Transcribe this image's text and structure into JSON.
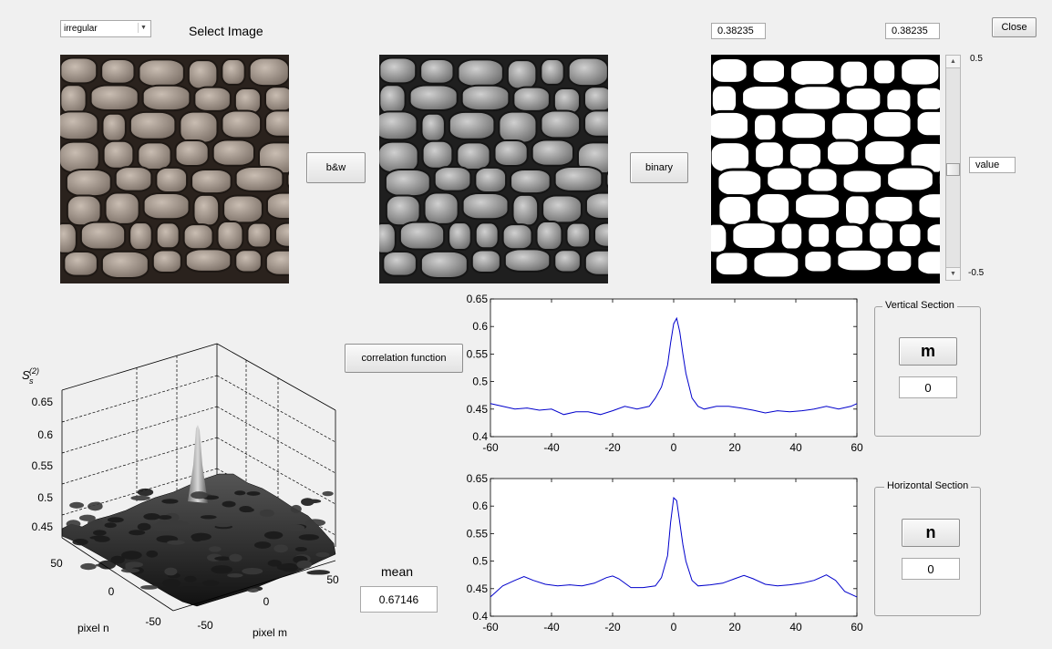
{
  "image_select": {
    "value": "irregular",
    "label": "Select Image"
  },
  "buttons": {
    "bw": "b&w",
    "binary": "binary",
    "close": "Close",
    "correlation": "correlation function",
    "vertical_dir": "m",
    "horizontal_dir": "n"
  },
  "threshold": {
    "left_value": "0.38235",
    "right_value": "0.38235",
    "slider_max": "0.5",
    "slider_min": "-0.5",
    "value_field": "value",
    "slider_level": 0.49
  },
  "mean": {
    "label": "mean",
    "value": "0.67146"
  },
  "vertical_section": {
    "title": "Vertical Section",
    "offset": "0"
  },
  "horizontal_section": {
    "title": "Horizontal Section",
    "offset": "0"
  },
  "surface_plot": {
    "zlabel_main": "S",
    "zlabel_sup": "(2)",
    "zlabel_sub": "s",
    "z_ticks": [
      "0.65",
      "0.6",
      "0.55",
      "0.5",
      "0.45"
    ],
    "n_ticks": [
      "50",
      "0",
      "-50"
    ],
    "m_ticks": [
      "-50",
      "0",
      "50"
    ],
    "xlabel": "pixel m",
    "ylabel": "pixel n"
  },
  "chart_data": [
    {
      "type": "line",
      "name": "vertical-section-plot",
      "xlim": [
        -60,
        60
      ],
      "ylim": [
        0.4,
        0.65
      ],
      "x_ticks": [
        -60,
        -40,
        -20,
        0,
        20,
        40,
        60
      ],
      "y_ticks": [
        0.4,
        0.45,
        0.5,
        0.55,
        0.6,
        0.65
      ],
      "color": "#0000cc",
      "x": [
        -60,
        -56,
        -52,
        -48,
        -44,
        -40,
        -36,
        -32,
        -28,
        -24,
        -20,
        -16,
        -12,
        -8,
        -6,
        -4,
        -2,
        -1,
        0,
        1,
        2,
        3,
        4,
        6,
        8,
        10,
        14,
        18,
        22,
        26,
        30,
        34,
        38,
        42,
        46,
        50,
        54,
        58,
        60
      ],
      "y": [
        0.46,
        0.455,
        0.45,
        0.452,
        0.448,
        0.45,
        0.44,
        0.445,
        0.445,
        0.44,
        0.447,
        0.455,
        0.45,
        0.455,
        0.47,
        0.49,
        0.53,
        0.57,
        0.605,
        0.615,
        0.59,
        0.55,
        0.515,
        0.47,
        0.455,
        0.45,
        0.455,
        0.455,
        0.452,
        0.448,
        0.443,
        0.447,
        0.445,
        0.447,
        0.45,
        0.455,
        0.45,
        0.455,
        0.46
      ]
    },
    {
      "type": "line",
      "name": "horizontal-section-plot",
      "xlim": [
        -60,
        60
      ],
      "ylim": [
        0.4,
        0.65
      ],
      "x_ticks": [
        -60,
        -40,
        -20,
        0,
        20,
        40,
        60
      ],
      "y_ticks": [
        0.4,
        0.45,
        0.5,
        0.55,
        0.6,
        0.65
      ],
      "color": "#0000cc",
      "x": [
        -60,
        -56,
        -52,
        -49,
        -46,
        -42,
        -38,
        -34,
        -30,
        -26,
        -22,
        -20,
        -18,
        -14,
        -10,
        -6,
        -4,
        -2,
        -1,
        0,
        1,
        2,
        3,
        4,
        6,
        8,
        12,
        16,
        20,
        23,
        26,
        30,
        34,
        38,
        42,
        46,
        50,
        53,
        56,
        60
      ],
      "y": [
        0.435,
        0.455,
        0.465,
        0.472,
        0.465,
        0.458,
        0.455,
        0.457,
        0.455,
        0.46,
        0.47,
        0.473,
        0.468,
        0.452,
        0.452,
        0.455,
        0.47,
        0.51,
        0.57,
        0.615,
        0.61,
        0.57,
        0.53,
        0.5,
        0.465,
        0.455,
        0.457,
        0.46,
        0.468,
        0.474,
        0.468,
        0.458,
        0.455,
        0.457,
        0.46,
        0.465,
        0.475,
        0.465,
        0.445,
        0.435
      ]
    }
  ]
}
